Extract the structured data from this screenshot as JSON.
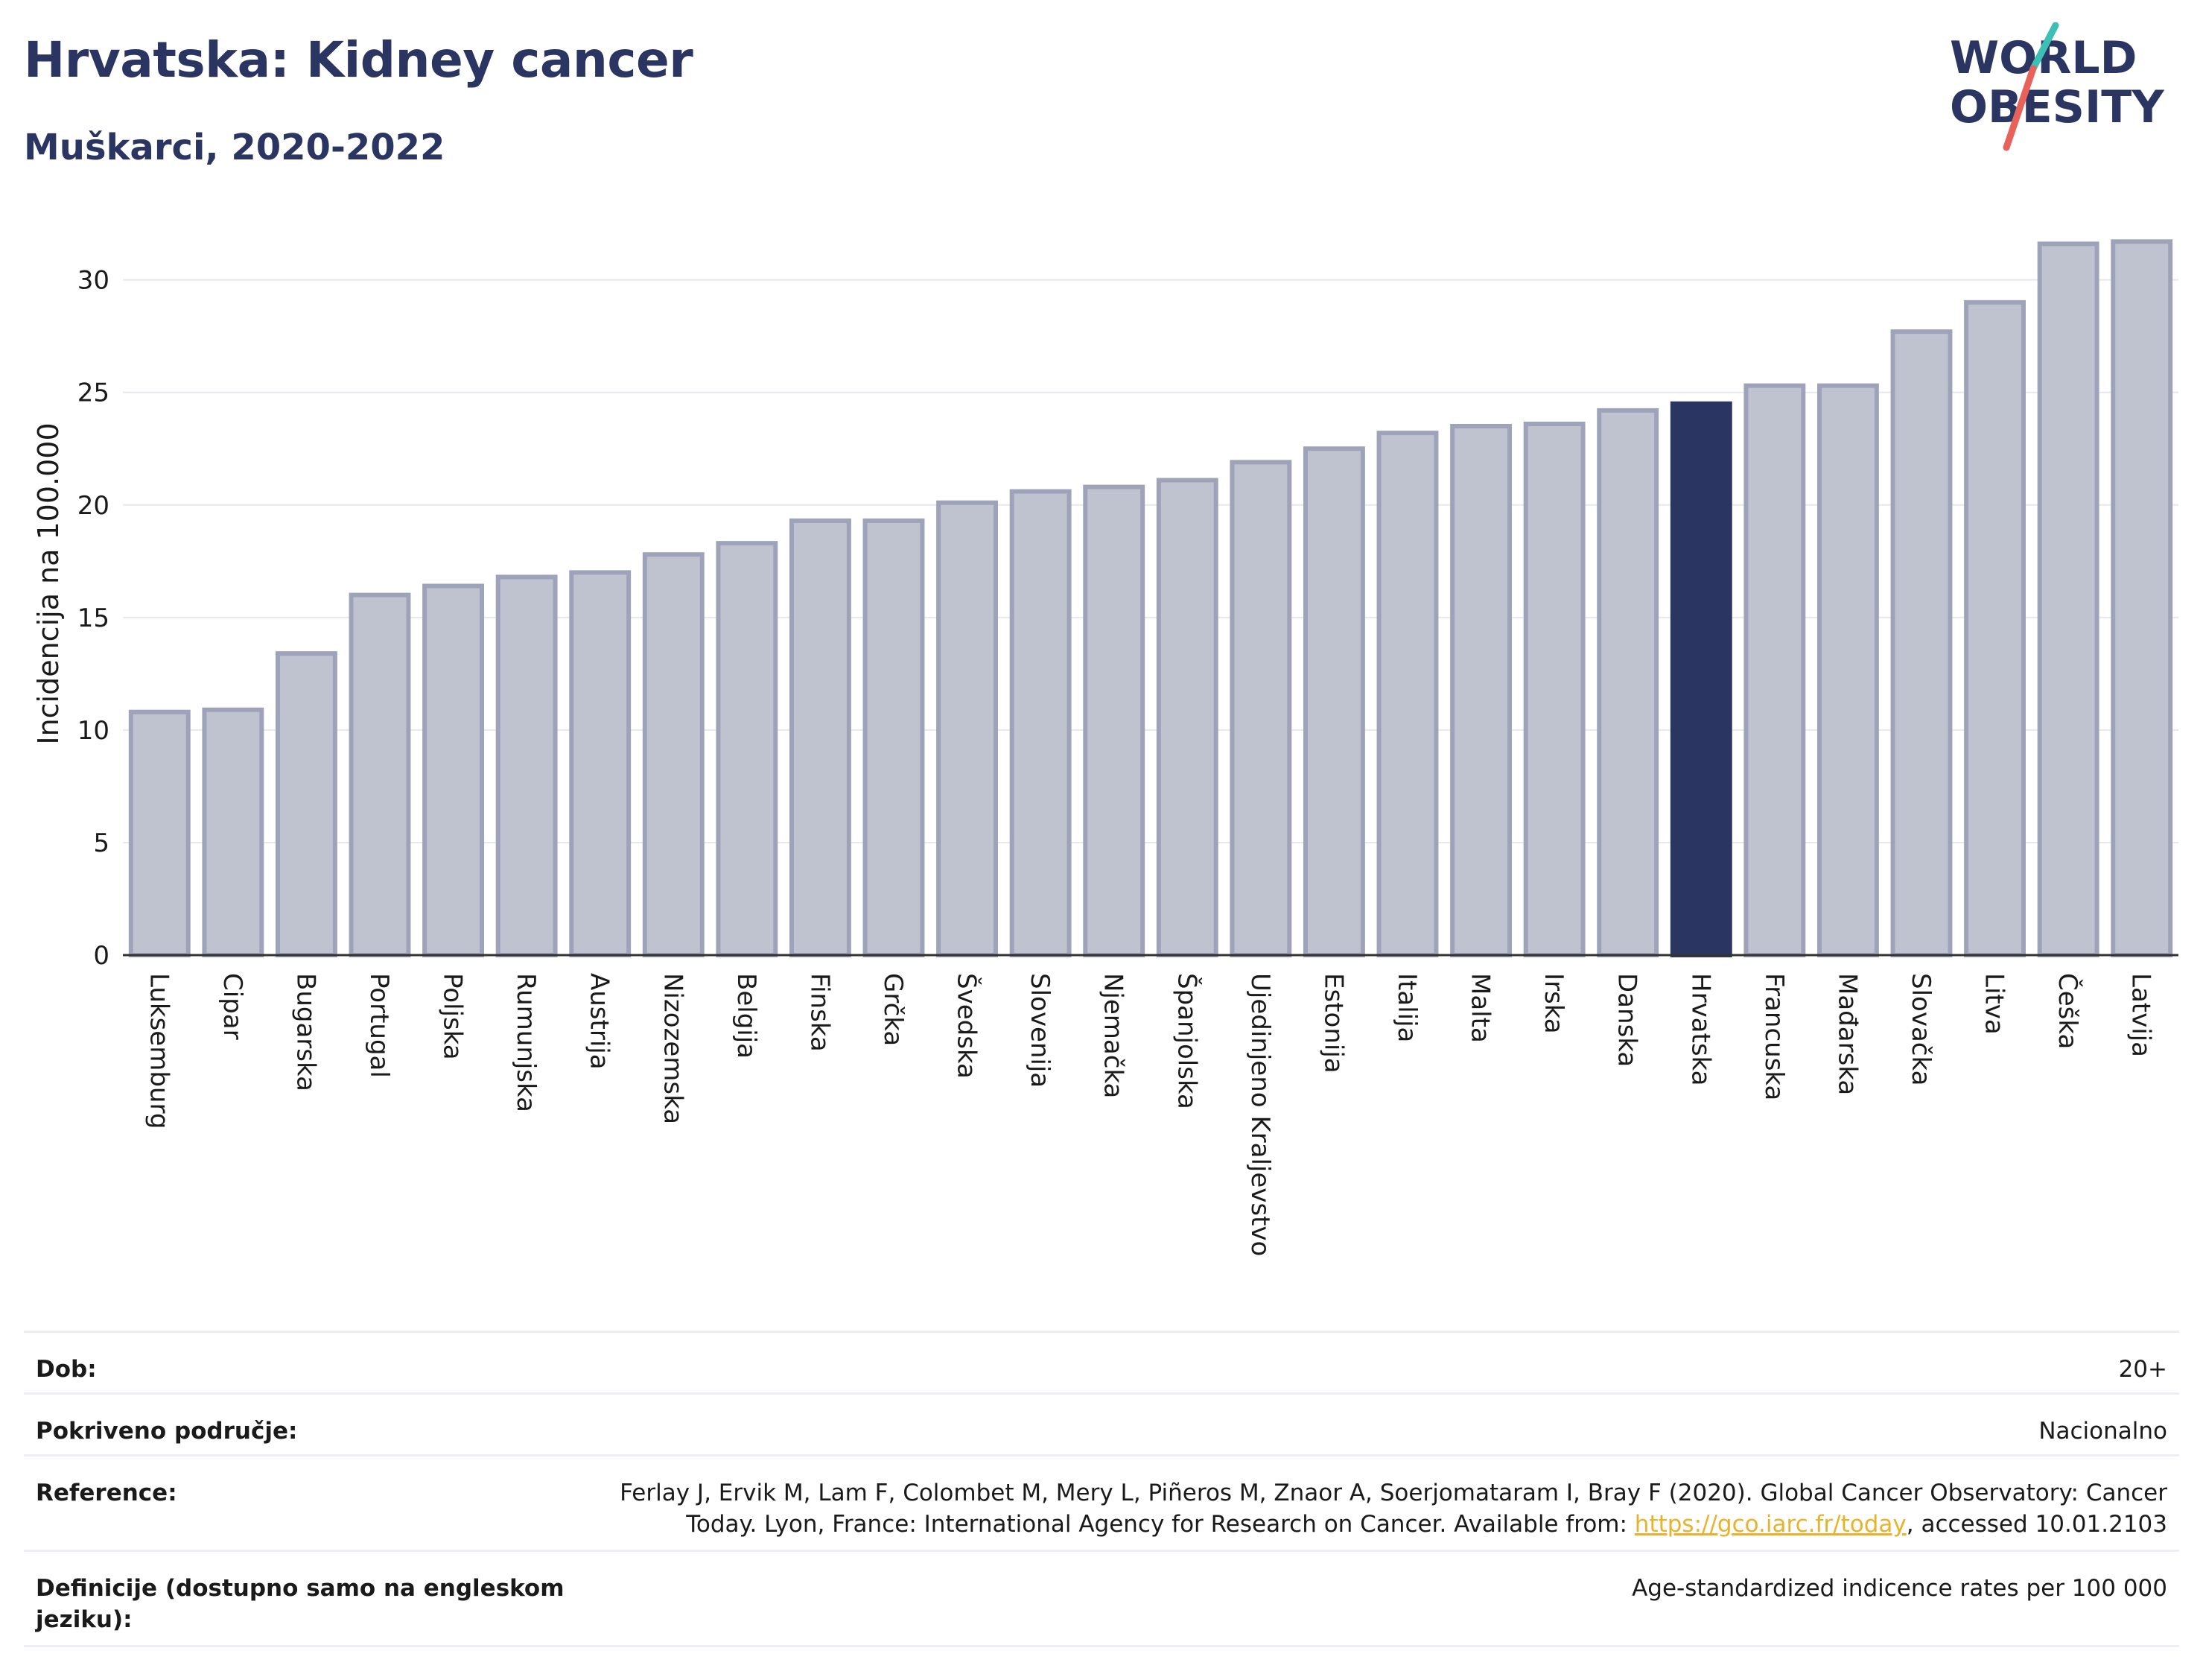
{
  "header": {
    "title": "Hrvatska: Kidney cancer",
    "subtitle": "Muškarci, 2020-2022"
  },
  "logo": {
    "line1": "WORLD",
    "line2": "OBESITY"
  },
  "colors": {
    "bar_default": "#bfc3d0",
    "bar_border": "#9ea3ba",
    "bar_highlight": "#2b3562",
    "title": "#2b3562",
    "logo_teal": "#3cbfb4",
    "logo_red": "#e8625a",
    "link": "#e8b32a"
  },
  "chart_data": {
    "type": "bar",
    "ylabel": "Incidencija na 100.000",
    "ylim": [
      0,
      33
    ],
    "yticks": [
      0,
      5,
      10,
      15,
      20,
      25,
      30
    ],
    "grid": true,
    "highlight": "Hrvatska",
    "categories": [
      "Luksemburg",
      "Cipar",
      "Bugarska",
      "Portugal",
      "Poljska",
      "Rumunjska",
      "Austrija",
      "Nizozemska",
      "Belgija",
      "Finska",
      "Grčka",
      "Švedska",
      "Slovenija",
      "Njemačka",
      "Španjolska",
      "Ujedinjeno Kraljevstvo",
      "Estonija",
      "Italija",
      "Malta",
      "Irska",
      "Danska",
      "Hrvatska",
      "Francuska",
      "Mađarska",
      "Slovačka",
      "Litva",
      "Češka",
      "Latvija"
    ],
    "values": [
      10.8,
      10.9,
      13.4,
      16.0,
      16.4,
      16.8,
      17.0,
      17.8,
      18.3,
      19.3,
      19.3,
      20.1,
      20.6,
      20.8,
      21.1,
      21.9,
      22.5,
      23.2,
      23.5,
      23.6,
      24.2,
      24.5,
      25.3,
      25.3,
      27.7,
      29.0,
      31.6,
      31.7
    ]
  },
  "meta": {
    "age_label": "Dob:",
    "age_value": "20+",
    "coverage_label": "Pokriveno područje:",
    "coverage_value": "Nacionalno",
    "reference_label": "Reference:",
    "reference_text_1": "Ferlay J, Ervik M, Lam F, Colombet M, Mery L, Piñeros M, Znaor A, Soerjomataram I, Bray F (2020). Global Cancer Observatory: Cancer Today. Lyon, France: International Agency for Research on Cancer. Available from: ",
    "reference_link": "https://gco.iarc.fr/today",
    "reference_text_2": ", accessed 10.01.2103",
    "definitions_label": "Definicije (dostupno samo na engleskom jeziku):",
    "definitions_value": "Age-standardized indicence rates per 100 000"
  }
}
